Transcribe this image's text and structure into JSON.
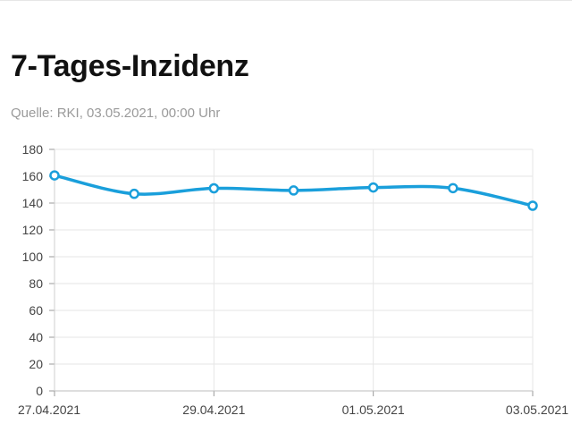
{
  "header": {
    "title": "7-Tages-Inzidenz",
    "source": "Quelle: RKI, 03.05.2021, 00:00 Uhr"
  },
  "chart_data": {
    "type": "line",
    "title": "7-Tages-Inzidenz",
    "subtitle": "Quelle: RKI, 03.05.2021, 00:00 Uhr",
    "xlabel": "",
    "ylabel": "",
    "x": [
      "27.04.2021",
      "28.04.2021",
      "29.04.2021",
      "30.04.2021",
      "01.05.2021",
      "02.05.2021",
      "03.05.2021"
    ],
    "x_tick_labels": [
      "27.04.2021",
      "29.04.2021",
      "01.05.2021",
      "03.05.2021"
    ],
    "series": [
      {
        "values": [
          160.6,
          146.9,
          151.0,
          149.4,
          151.6,
          151.1,
          138.0
        ],
        "color": "#1a9fdb"
      }
    ],
    "ylim": [
      0,
      180
    ],
    "y_ticks": [
      0,
      20,
      40,
      60,
      80,
      100,
      120,
      140,
      160,
      180
    ],
    "grid": true,
    "legend": "none",
    "line_color": "#1a9fdb",
    "grid_color": "#e6e6e6"
  }
}
